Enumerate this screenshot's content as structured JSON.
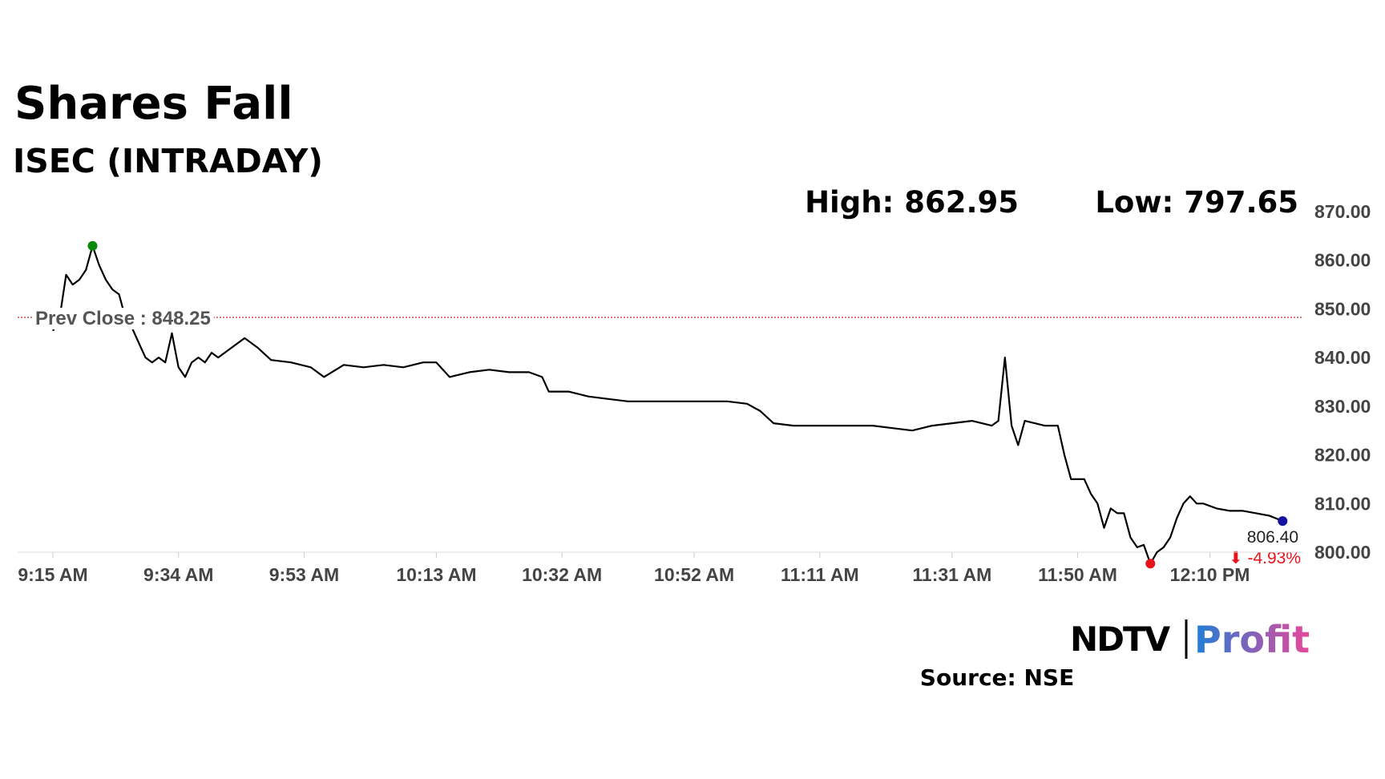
{
  "chart_data": {
    "type": "line",
    "title": "Shares Fall",
    "subtitle": "ISEC (INTRADAY)",
    "high_label": "High: 862.95",
    "low_label": "Low: 797.65",
    "prev_close": {
      "value": 848.25,
      "label": "Prev Close : 848.25"
    },
    "last_label": "806.40",
    "change_label": "⬇ -4.93%",
    "source": "Source: NSE",
    "logo": {
      "left": "NDTV",
      "right": "Profit"
    },
    "x": [
      "9:15 AM",
      "9:16 AM",
      "9:17 AM",
      "9:18 AM",
      "9:19 AM",
      "9:20 AM",
      "9:21 AM",
      "9:22 AM",
      "9:23 AM",
      "9:24 AM",
      "9:25 AM",
      "9:26 AM",
      "9:27 AM",
      "9:28 AM",
      "9:29 AM",
      "9:30 AM",
      "9:31 AM",
      "9:32 AM",
      "9:33 AM",
      "9:34 AM",
      "9:35 AM",
      "9:36 AM",
      "9:37 AM",
      "9:38 AM",
      "9:39 AM",
      "9:40 AM",
      "9:42 AM",
      "9:44 AM",
      "9:46 AM",
      "9:48 AM",
      "9:51 AM",
      "9:54 AM",
      "9:56 AM",
      "9:59 AM",
      "10:02 AM",
      "10:05 AM",
      "10:08 AM",
      "10:11 AM",
      "10:13 AM",
      "10:15 AM",
      "10:18 AM",
      "10:21 AM",
      "10:24 AM",
      "10:27 AM",
      "10:29 AM",
      "10:30 AM",
      "10:33 AM",
      "10:36 AM",
      "10:39 AM",
      "10:42 AM",
      "10:45 AM",
      "10:48 AM",
      "10:51 AM",
      "10:54 AM",
      "10:57 AM",
      "11:00 AM",
      "11:02 AM",
      "11:04 AM",
      "11:07 AM",
      "11:10 AM",
      "11:13 AM",
      "11:16 AM",
      "11:19 AM",
      "11:22 AM",
      "11:25 AM",
      "11:28 AM",
      "11:31 AM",
      "11:34 AM",
      "11:37 AM",
      "11:38 AM",
      "11:39 AM",
      "11:40 AM",
      "11:41 AM",
      "11:42 AM",
      "11:45 AM",
      "11:47 AM",
      "11:48 AM",
      "11:49 AM",
      "11:51 AM",
      "11:52 AM",
      "11:53 AM",
      "11:54 AM",
      "11:55 AM",
      "11:56 AM",
      "11:57 AM",
      "11:58 AM",
      "11:59 AM",
      "12:00 PM",
      "12:01 PM",
      "12:02 PM",
      "12:03 PM",
      "12:04 PM",
      "12:05 PM",
      "12:06 PM",
      "12:07 PM",
      "12:08 PM",
      "12:09 PM",
      "12:11 PM",
      "12:13 PM",
      "12:15 PM",
      "12:17 PM",
      "12:19 PM",
      "12:21 PM"
    ],
    "series": [
      {
        "name": "ISEC",
        "color": "#000000",
        "values": [
          845.5,
          848,
          857,
          855,
          856,
          858,
          862.95,
          859,
          856,
          854,
          853,
          848,
          846,
          843,
          840,
          839,
          840,
          839,
          845,
          838,
          836,
          839,
          840,
          839,
          841,
          840,
          842,
          844,
          842,
          839.5,
          839,
          838,
          836,
          838.5,
          838,
          838.5,
          838,
          839,
          839,
          836,
          837,
          837.5,
          837,
          837,
          836,
          833,
          833,
          832,
          831.5,
          831,
          831,
          831,
          831,
          831,
          831,
          830.5,
          829,
          826.5,
          826,
          826,
          826,
          826,
          826,
          825.5,
          825,
          826,
          826.5,
          827,
          826,
          827,
          840,
          826,
          822,
          827,
          826,
          826,
          820,
          815,
          815,
          812,
          810,
          805,
          809,
          808,
          808,
          803,
          801,
          801.5,
          797.65,
          800,
          801,
          803,
          807,
          810,
          811.5,
          810,
          810,
          809,
          808.5,
          808.5,
          808,
          807.5,
          806.4
        ]
      }
    ],
    "high_color": "#0a8a0a",
    "low_color": "#e8141b",
    "last_color": "#1414a0",
    "prev_close_color": "#c0141b",
    "xlim": [
      "9:15 AM",
      "12:24 PM"
    ],
    "xticks": [
      "9:15 AM",
      "9:34 AM",
      "9:53 AM",
      "10:13 AM",
      "10:32 AM",
      "10:52 AM",
      "11:11 AM",
      "11:31 AM",
      "11:50 AM",
      "12:10 PM"
    ],
    "ylim": [
      800,
      870
    ],
    "yticks": [
      {
        "value": 800,
        "label": "800.00"
      },
      {
        "value": 810,
        "label": "810.00"
      },
      {
        "value": 820,
        "label": "820.00"
      },
      {
        "value": 830,
        "label": "830.00"
      },
      {
        "value": 840,
        "label": "840.00"
      },
      {
        "value": 850,
        "label": "850.00"
      },
      {
        "value": 860,
        "label": "860.00"
      },
      {
        "value": 870,
        "label": "870.00"
      }
    ]
  }
}
